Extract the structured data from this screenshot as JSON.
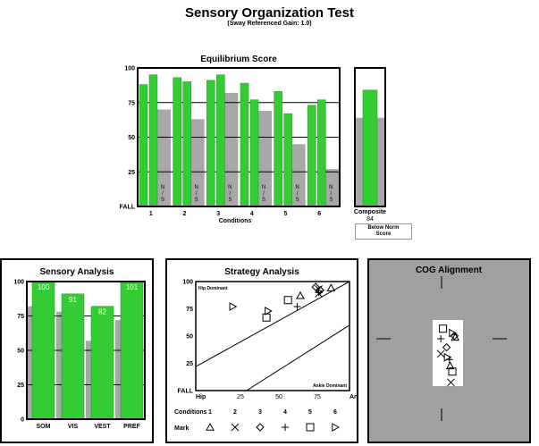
{
  "header": {
    "title": "Sensory Organization Test",
    "subtitle": "(Sway Referenced Gain: 1.0)"
  },
  "colors": {
    "patient_bar": "#33cc33",
    "norm_bar": "#a8a8a8",
    "cog_background": "#a0a0a0"
  },
  "chart_data": [
    {
      "id": "equilibrium",
      "type": "bar",
      "title": "Equilibrium Score",
      "xlabel": "Conditions",
      "categories": [
        "1",
        "2",
        "3",
        "4",
        "5",
        "6"
      ],
      "trials": 3,
      "series": [
        {
          "name": "Patient trial score",
          "values": [
            [
              88,
              95,
              null
            ],
            [
              93,
              90,
              null
            ],
            [
              91,
              95,
              null
            ],
            [
              89,
              77,
              null
            ],
            [
              83,
              67,
              null
            ],
            [
              73,
              77,
              null
            ]
          ]
        },
        {
          "name": "Norm",
          "values": [
            70,
            63,
            82,
            69,
            45,
            27
          ]
        }
      ],
      "nonscored_label": "N\n/\nS",
      "ylim": [
        0,
        100
      ],
      "yticks": [
        "FALL",
        "25",
        "50",
        "75",
        "100"
      ],
      "gridlines": [
        25,
        50,
        75
      ]
    },
    {
      "id": "composite",
      "type": "bar",
      "label": "Composite",
      "value": 84,
      "value_label": "84",
      "norm": 64,
      "ylim": [
        0,
        100
      ],
      "legend_label": "Below Norm Score"
    },
    {
      "id": "sensory",
      "type": "bar",
      "title": "Sensory Analysis",
      "categories": [
        "SOM",
        "VIS",
        "VEST",
        "PREF"
      ],
      "values": [
        100,
        91,
        82,
        101
      ],
      "value_labels": [
        "100",
        "91",
        "82",
        "101"
      ],
      "norm": [
        82,
        78,
        57,
        72
      ],
      "ylim": [
        0,
        100
      ],
      "yticks": [
        "0",
        "25",
        "50",
        "75",
        "100"
      ],
      "gridlines": [
        25,
        50,
        75
      ]
    },
    {
      "id": "strategy",
      "type": "scatter",
      "title": "Strategy Analysis",
      "xlabel_left": "Hip",
      "xlabel_right": "Ank",
      "xticks": [
        "25",
        "50",
        "75"
      ],
      "yticks": [
        "FALL",
        "25",
        "50",
        "75",
        "100"
      ],
      "xlim": [
        0,
        100
      ],
      "ylim": [
        0,
        100
      ],
      "zone_labels": [
        "Hip Dominant",
        "Ankle Dominant"
      ],
      "points": [
        {
          "condition": "1",
          "marker": "triangle-up",
          "x": 68,
          "y": 87
        },
        {
          "condition": "1",
          "marker": "triangle-up",
          "x": 88,
          "y": 94
        },
        {
          "condition": "2",
          "marker": "x",
          "x": 80,
          "y": 93
        },
        {
          "condition": "2",
          "marker": "x",
          "x": 80,
          "y": 89
        },
        {
          "condition": "3",
          "marker": "diamond",
          "x": 78,
          "y": 95
        },
        {
          "condition": "3",
          "marker": "diamond",
          "x": 81,
          "y": 92
        },
        {
          "condition": "4",
          "marker": "plus",
          "x": 66,
          "y": 77
        },
        {
          "condition": "4",
          "marker": "plus",
          "x": 80,
          "y": 90
        },
        {
          "condition": "5",
          "marker": "square",
          "x": 60,
          "y": 83
        },
        {
          "condition": "5",
          "marker": "square",
          "x": 46,
          "y": 67
        },
        {
          "condition": "6",
          "marker": "triangle-right",
          "x": 24,
          "y": 77
        },
        {
          "condition": "6",
          "marker": "triangle-right",
          "x": 47,
          "y": 73
        }
      ],
      "legend": {
        "conditions_label": "Conditions",
        "mark_label": "Mark",
        "conditions": [
          "1",
          "2",
          "3",
          "4",
          "5",
          "6"
        ],
        "markers": [
          "triangle-up",
          "x",
          "diamond",
          "plus",
          "square",
          "triangle-right"
        ]
      }
    },
    {
      "id": "cog",
      "type": "scatter",
      "title": "COG Alignment",
      "xlim": [
        -10,
        10
      ],
      "ylim": [
        -10,
        10
      ],
      "points": [
        {
          "marker": "square",
          "x": 0.2,
          "y": 1.4
        },
        {
          "marker": "square",
          "x": 1.5,
          "y": -4.6
        },
        {
          "marker": "diamond",
          "x": 0.7,
          "y": -1.2
        },
        {
          "marker": "diamond",
          "x": 1.8,
          "y": 0.4
        },
        {
          "marker": "triangle-up",
          "x": 1.9,
          "y": 0.2
        },
        {
          "marker": "triangle-up",
          "x": 1.2,
          "y": -3.8
        },
        {
          "marker": "triangle-right",
          "x": 1.5,
          "y": 0.8
        },
        {
          "marker": "triangle-right",
          "x": 0.8,
          "y": -2.6
        },
        {
          "marker": "plus",
          "x": -0.1,
          "y": 0.0
        },
        {
          "marker": "plus",
          "x": 1.1,
          "y": -2.9
        },
        {
          "marker": "x",
          "x": -0.1,
          "y": -2.1
        },
        {
          "marker": "x",
          "x": 1.3,
          "y": -6.1
        }
      ]
    }
  ]
}
